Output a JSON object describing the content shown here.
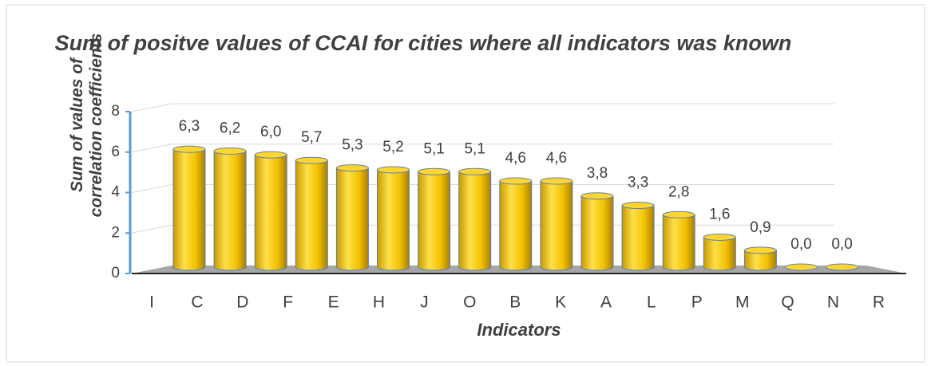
{
  "chart_data": {
    "type": "bar",
    "title": "Sum of positve values of CCAI for cities where all indicators was known",
    "x_label": "Indicators",
    "y_label": "Sum of values of correlation coefficients",
    "categories": [
      "I",
      "C",
      "D",
      "F",
      "E",
      "H",
      "J",
      "O",
      "B",
      "K",
      "A",
      "L",
      "P",
      "M",
      "Q",
      "N",
      "R"
    ],
    "values": [
      6.3,
      6.2,
      6.0,
      5.7,
      5.3,
      5.2,
      5.1,
      5.1,
      4.6,
      4.6,
      3.8,
      3.3,
      2.8,
      1.6,
      0.9,
      0.0,
      0.0
    ],
    "value_labels": [
      "6,3",
      "6,2",
      "6,0",
      "5,7",
      "5,3",
      "5,2",
      "5,1",
      "5,1",
      "4,6",
      "4,6",
      "3,8",
      "3,3",
      "2,8",
      "1,6",
      "0,9",
      "0,0",
      "0,0"
    ],
    "color": "#f2c200",
    "ylim": [
      0,
      8
    ],
    "yticks": [
      0,
      2,
      4,
      6,
      8
    ],
    "grid": true
  }
}
